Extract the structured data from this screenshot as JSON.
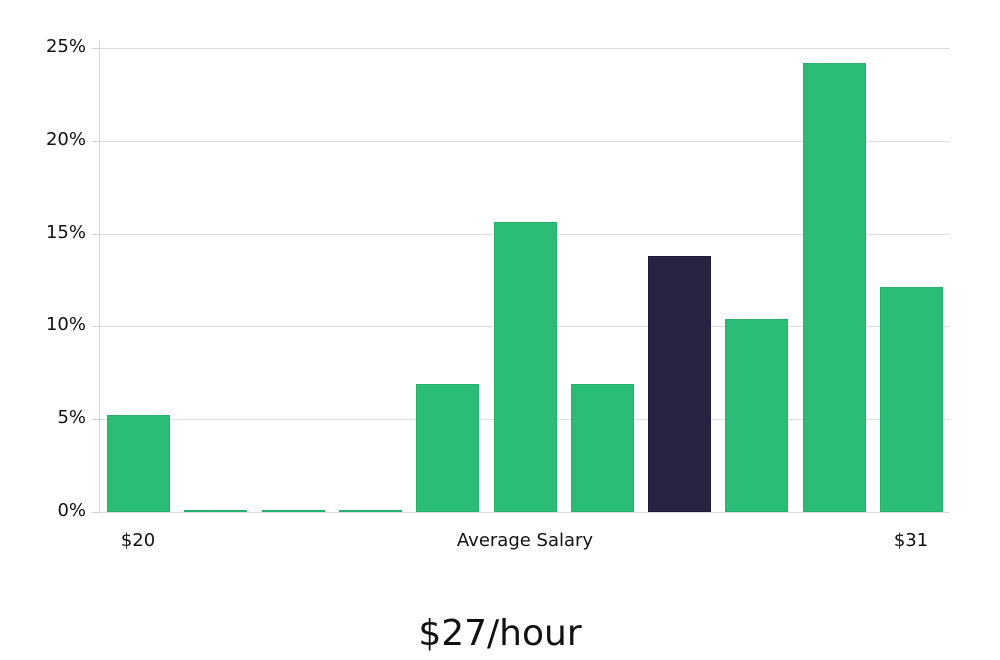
{
  "chart_data": {
    "type": "bar",
    "title": "",
    "xlabel": "Average Salary",
    "ylabel": "",
    "ylim": [
      0,
      25
    ],
    "yticks": [
      "0%",
      "5%",
      "10%",
      "15%",
      "20%",
      "25%"
    ],
    "ytick_values": [
      0,
      5,
      10,
      15,
      20,
      25
    ],
    "categories": [
      "bin1",
      "bin2",
      "bin3",
      "bin4",
      "bin5",
      "bin6",
      "bin7",
      "bin8",
      "bin9",
      "bin10",
      "bin11"
    ],
    "values": [
      5.2,
      0.1,
      0.1,
      0.1,
      6.9,
      15.6,
      6.9,
      13.8,
      10.4,
      24.2,
      12.1
    ],
    "highlight_index": 7,
    "x_tick_labels": {
      "left": "$20",
      "center": "Average Salary",
      "right": "$31"
    },
    "grid": true,
    "colors": {
      "bar": "#2bbd77",
      "highlight": "#272443",
      "grid": "#dcdcdc"
    }
  },
  "axis": {
    "x_left_label": "$20",
    "x_center_label": "Average Salary",
    "x_right_label": "$31"
  },
  "headline": "$27/hour"
}
